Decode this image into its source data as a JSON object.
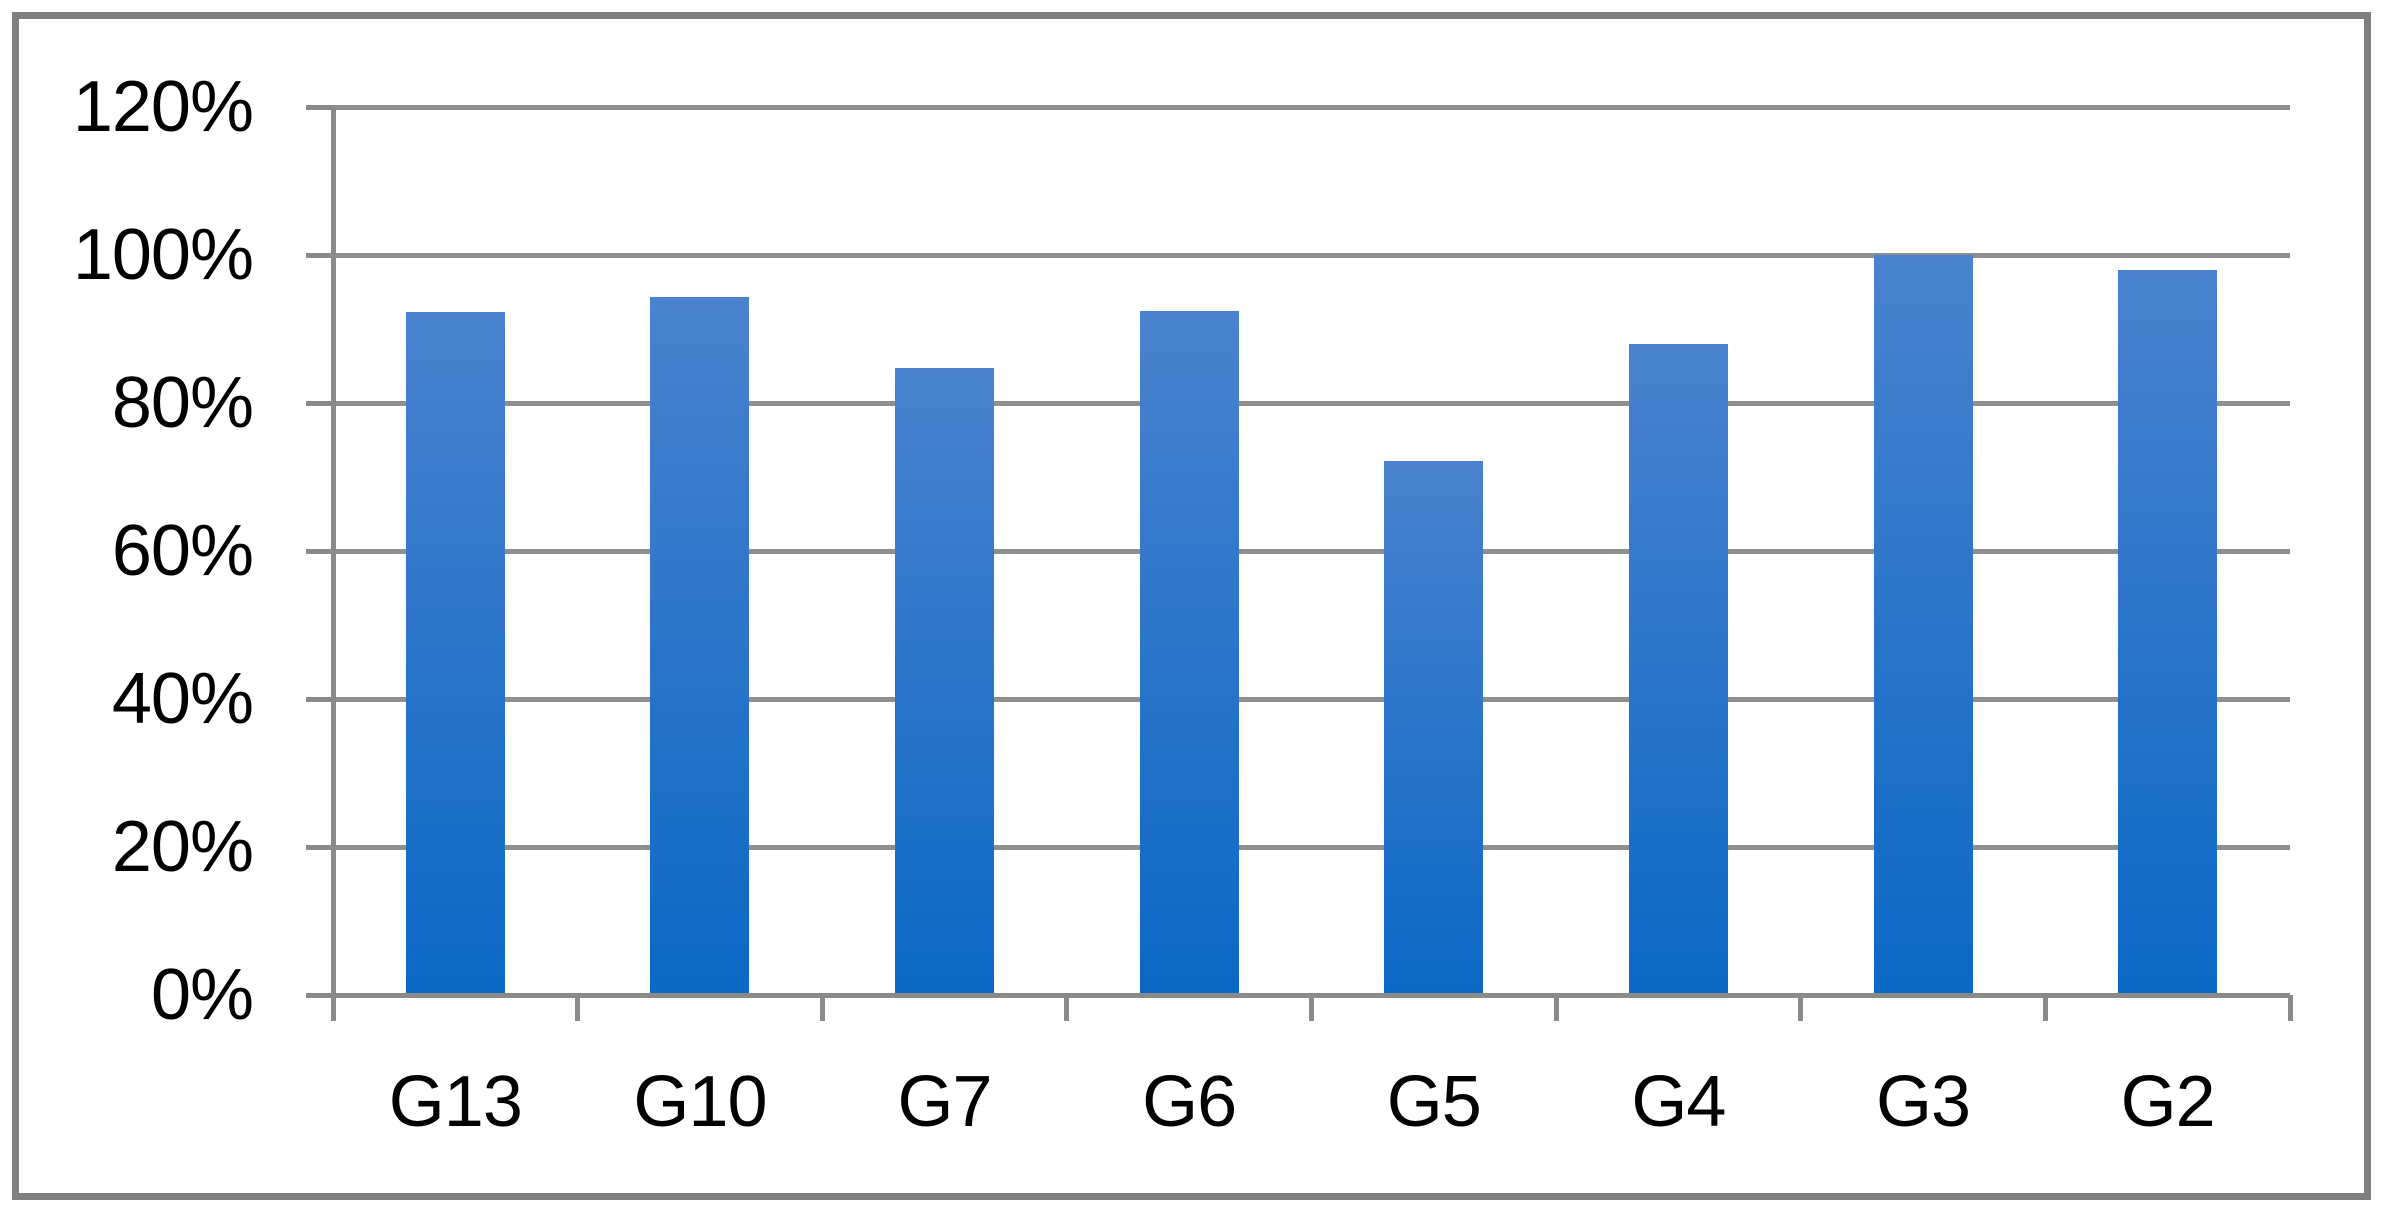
{
  "chart_data": {
    "type": "bar",
    "categories": [
      "G13",
      "G10",
      "G7",
      "G6",
      "G5",
      "G4",
      "G3",
      "G2"
    ],
    "values": [
      92.3,
      94.3,
      84.7,
      92.5,
      72.2,
      88,
      100,
      98
    ],
    "y_axis": {
      "unit": "percent",
      "ylim": [
        0,
        120
      ],
      "tick_interval": 20,
      "tick_labels": [
        "120%",
        "100%",
        "80%",
        "60%",
        "40%",
        "20%",
        "0%"
      ]
    },
    "layout_hints": {
      "grid": true,
      "legend": false,
      "bar_orientation": "vertical"
    },
    "colors": {
      "bar_gradient_top": "#4A82CE",
      "bar_gradient_bottom": "#0B68C5",
      "gridline": "#8F8F8F",
      "axis": "#8A8A8A",
      "frame_border": "#7F7F7F",
      "label_text": "#000000",
      "background": "#FFFFFF"
    }
  }
}
